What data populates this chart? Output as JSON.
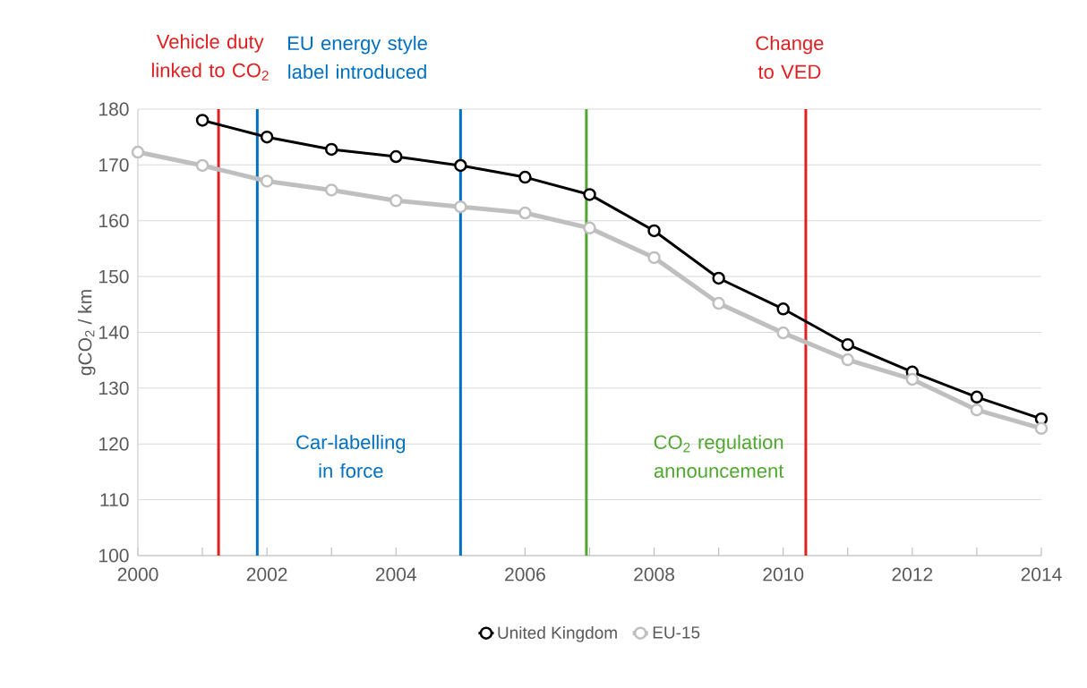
{
  "chart_data": {
    "type": "line",
    "ylabel": "gCO$_{2}$ / km",
    "x": [
      2000,
      2001,
      2002,
      2003,
      2004,
      2005,
      2006,
      2007,
      2008,
      2009,
      2010,
      2011,
      2012,
      2013,
      2014
    ],
    "series": [
      {
        "name": "United Kingdom",
        "color": "#000000",
        "values": [
          null,
          178,
          175,
          172.8,
          171.5,
          169.9,
          167.8,
          164.7,
          158.2,
          149.7,
          144.2,
          137.8,
          132.9,
          128.4,
          124.5
        ]
      },
      {
        "name": "EU-15",
        "color": "#bfbfbf",
        "values": [
          172.3,
          169.9,
          167.1,
          165.5,
          163.6,
          162.5,
          161.4,
          158.7,
          153.4,
          145.2,
          139.9,
          135.1,
          131.6,
          126.1,
          122.8
        ]
      }
    ],
    "xlim": [
      2000,
      2014
    ],
    "xticks": [
      2000,
      {
        "value": 2001,
        "label": null
      },
      2002,
      {
        "value": 2003,
        "label": null
      },
      2004,
      {
        "value": 2005,
        "label": null
      },
      2006,
      {
        "value": 2007,
        "label": null
      },
      2008,
      {
        "value": 2009,
        "label": null
      },
      2010,
      {
        "value": 2011,
        "label": null
      },
      2012,
      {
        "value": 2013,
        "label": null
      },
      2014
    ],
    "ylim": [
      100,
      180
    ],
    "yticks": [
      100,
      110,
      120,
      130,
      140,
      150,
      160,
      170,
      180
    ],
    "ref_lines": [
      {
        "axis": "x",
        "value": 2001.25,
        "label": "Vehicle duty linked to CO$_{2}$",
        "color": "#e02020"
      },
      {
        "axis": "x",
        "value": 2001.85,
        "label": "Car-labelling in force",
        "color": "#0070c0"
      },
      {
        "axis": "x",
        "value": 2005,
        "label": "EU energy style label introduced",
        "color": "#0070c0"
      },
      {
        "axis": "x",
        "value": 2006.95,
        "label": "CO$_{2}$ regulation announcement",
        "color": "#4ea72e"
      },
      {
        "axis": "x",
        "value": 2010.35,
        "label": "Change to VED",
        "color": "#e02020"
      }
    ],
    "grid": "y",
    "legend": "bottom",
    "marker": "circle",
    "line_style": "solid"
  }
}
